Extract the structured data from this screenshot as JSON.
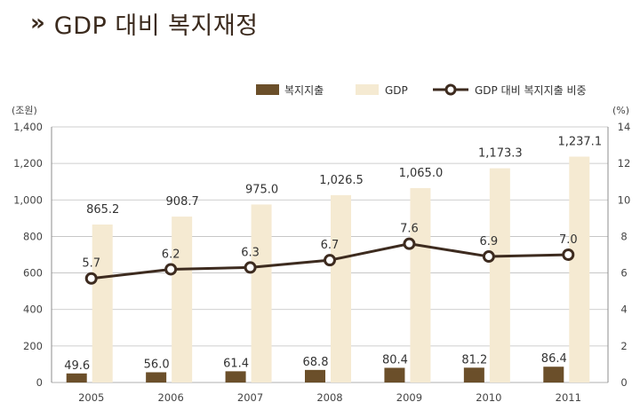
{
  "header": {
    "chevrons": "»",
    "title": "GDP 대비 복지재정"
  },
  "legend": {
    "welfare": "복지지출",
    "gdp": "GDP",
    "ratio": "GDP 대비 복지지출 비중"
  },
  "colors": {
    "welfare_bar": "#6b4f2a",
    "gdp_bar": "#f5ead2",
    "ratio_line": "#3d2b1f",
    "grid": "#bfbfbf",
    "title": "#3b2a1d"
  },
  "chart_data": {
    "type": "bar",
    "categories": [
      "2005",
      "2006",
      "2007",
      "2008",
      "2009",
      "2010",
      "2011"
    ],
    "left_axis": {
      "unit": "(조원)",
      "ylim": [
        0,
        1400
      ],
      "ticks": [
        "0",
        "200",
        "400",
        "600",
        "800",
        "1,000",
        "1,200",
        "1,400"
      ]
    },
    "right_axis": {
      "unit": "(%)",
      "ylim": [
        0,
        14
      ],
      "ticks": [
        "0",
        "2",
        "4",
        "6",
        "8",
        "10",
        "12",
        "14"
      ]
    },
    "series": [
      {
        "name": "복지지출",
        "type": "bar",
        "axis": "left",
        "values": [
          49.6,
          56.0,
          61.4,
          68.8,
          80.4,
          81.2,
          86.4
        ],
        "labels": [
          "49.6",
          "56.0",
          "61.4",
          "68.8",
          "80.4",
          "81.2",
          "86.4"
        ]
      },
      {
        "name": "GDP",
        "type": "bar",
        "axis": "left",
        "values": [
          865.2,
          908.7,
          975.0,
          1026.5,
          1065.0,
          1173.3,
          1237.1
        ],
        "labels": [
          "865.2",
          "908.7",
          "975.0",
          "1,026.5",
          "1,065.0",
          "1,173.3",
          "1,237.1"
        ]
      },
      {
        "name": "GDP 대비 복지지출 비중",
        "type": "line",
        "axis": "right",
        "values": [
          5.7,
          6.2,
          6.3,
          6.7,
          7.6,
          6.9,
          7.0
        ],
        "labels": [
          "5.7",
          "6.2",
          "6.3",
          "6.7",
          "7.6",
          "6.9",
          "7.0"
        ]
      }
    ],
    "grid": true,
    "legend_position": "top-right"
  }
}
